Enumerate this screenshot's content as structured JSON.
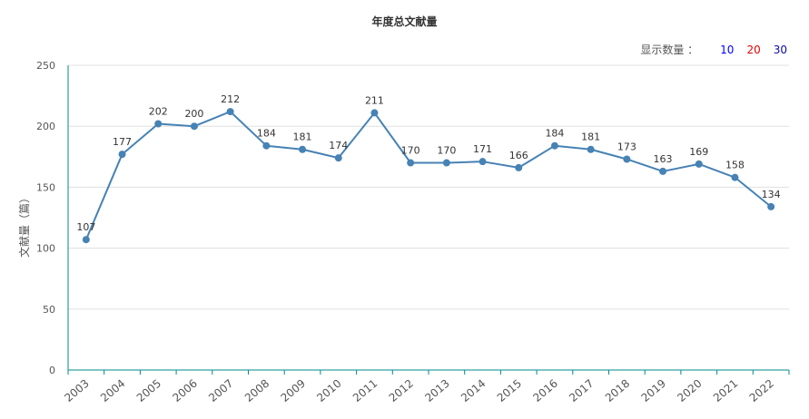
{
  "title": "年度总文献量",
  "controls": {
    "label": "显示数量 ：",
    "options": [
      {
        "label": "10",
        "color": "#0000ff"
      },
      {
        "label": "20",
        "color": "#e60000"
      },
      {
        "label": "30",
        "color": "#0a0aa0"
      }
    ]
  },
  "chart_data": {
    "type": "line",
    "title": "年度总文献量",
    "ylabel": "文献量（篇）",
    "xlabel": "",
    "x": [
      "2003",
      "2004",
      "2005",
      "2006",
      "2007",
      "2008",
      "2009",
      "2010",
      "2011",
      "2012",
      "2013",
      "2014",
      "2015",
      "2016",
      "2017",
      "2018",
      "2019",
      "2020",
      "2021",
      "2022"
    ],
    "values": [
      107,
      177,
      202,
      200,
      212,
      184,
      181,
      174,
      211,
      170,
      170,
      171,
      166,
      184,
      181,
      173,
      163,
      169,
      158,
      134
    ],
    "ylim": [
      0,
      250
    ],
    "yticks": [
      0,
      50,
      100,
      150,
      200,
      250
    ],
    "line_color": "#4682b4",
    "axis_color": "#008b8b",
    "grid": true,
    "data_labels": true
  }
}
